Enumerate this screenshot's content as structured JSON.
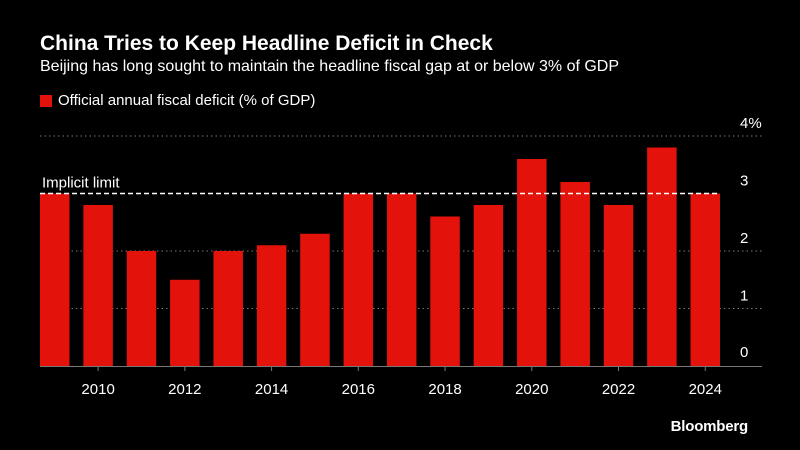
{
  "chart_data": {
    "type": "bar",
    "title": "China Tries to Keep Headline Deficit in Check",
    "subtitle": "Beijing has long sought to maintain the headline fiscal gap at or below 3% of GDP",
    "series": [
      {
        "name": "Official annual fiscal deficit (% of GDP)",
        "color": "#e3120b",
        "x": [
          2009,
          2010,
          2011,
          2012,
          2013,
          2014,
          2015,
          2016,
          2017,
          2018,
          2019,
          2020,
          2021,
          2022,
          2023,
          2024
        ],
        "values": [
          3.0,
          2.8,
          2.0,
          1.5,
          2.0,
          2.1,
          2.3,
          3.0,
          3.0,
          2.6,
          2.8,
          3.6,
          3.2,
          2.8,
          3.8,
          3.0
        ]
      }
    ],
    "x_tick_labels": [
      "2010",
      "2012",
      "2014",
      "2016",
      "2018",
      "2020",
      "2022",
      "2024"
    ],
    "y_tick_labels": [
      "0",
      "1",
      "2",
      "3",
      "4%"
    ],
    "y_ticks": [
      0,
      1,
      2,
      3,
      4
    ],
    "ylim": [
      0,
      4
    ],
    "grid": "horizontal-dotted",
    "y_axis_side": "right",
    "legend_position": "top-left",
    "annotation": {
      "label": "Implicit limit",
      "value": 3
    },
    "colors": {
      "background": "#000000",
      "bar": "#e3120b",
      "grid": "#777777",
      "text": "#ffffff"
    }
  },
  "brand": "Bloomberg"
}
